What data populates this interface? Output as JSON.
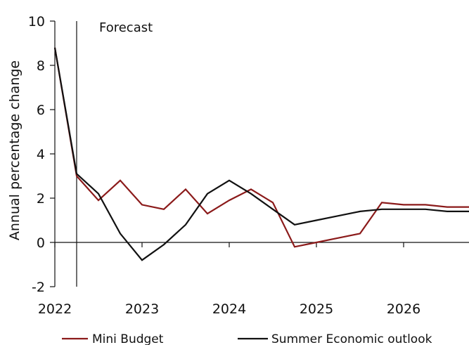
{
  "chart_data": {
    "type": "line",
    "title": "",
    "xlabel": "",
    "ylabel": "Annual percentage change",
    "ylim": [
      -2,
      10
    ],
    "yticks": [
      -2,
      0,
      2,
      4,
      6,
      8,
      10
    ],
    "ytick_labels": [
      "-2",
      "0",
      "2",
      "4",
      "6",
      "8",
      "10"
    ],
    "xlim": [
      2022.0,
      2026.75
    ],
    "xtick_labels": [
      "2022",
      "2023",
      "2024",
      "2025",
      "2026"
    ],
    "xtick_positions": [
      2022,
      2023,
      2024,
      2025,
      2026
    ],
    "annotation": {
      "label": "Forecast",
      "x": 2022.25
    },
    "legend_position": "bottom",
    "grid": false,
    "series": [
      {
        "name": "Mini Budget",
        "color": "#8b1a1a",
        "x": [
          2022.0,
          2022.25,
          2022.5,
          2022.75,
          2023.0,
          2023.25,
          2023.5,
          2023.75,
          2024.0,
          2024.25,
          2024.5,
          2024.75,
          2025.0,
          2025.25,
          2025.5,
          2025.75,
          2026.0,
          2026.25,
          2026.5,
          2026.75
        ],
        "values": [
          8.8,
          3.0,
          1.9,
          2.8,
          1.7,
          1.5,
          2.4,
          1.3,
          1.9,
          2.4,
          1.8,
          -0.2,
          0.0,
          0.2,
          0.4,
          1.8,
          1.7,
          1.7,
          1.6,
          1.6
        ]
      },
      {
        "name": "Summer Economic outlook",
        "color": "#111111",
        "x": [
          2022.0,
          2022.25,
          2022.5,
          2022.75,
          2023.0,
          2023.25,
          2023.5,
          2023.75,
          2024.0,
          2024.25,
          2024.5,
          2024.75,
          2025.0,
          2025.25,
          2025.5,
          2025.75,
          2026.0,
          2026.25,
          2026.5,
          2026.75
        ],
        "values": [
          8.8,
          3.1,
          2.2,
          0.4,
          -0.8,
          -0.1,
          0.8,
          2.2,
          2.8,
          2.2,
          1.5,
          0.8,
          1.0,
          1.2,
          1.4,
          1.5,
          1.5,
          1.5,
          1.4,
          1.4
        ]
      }
    ]
  }
}
